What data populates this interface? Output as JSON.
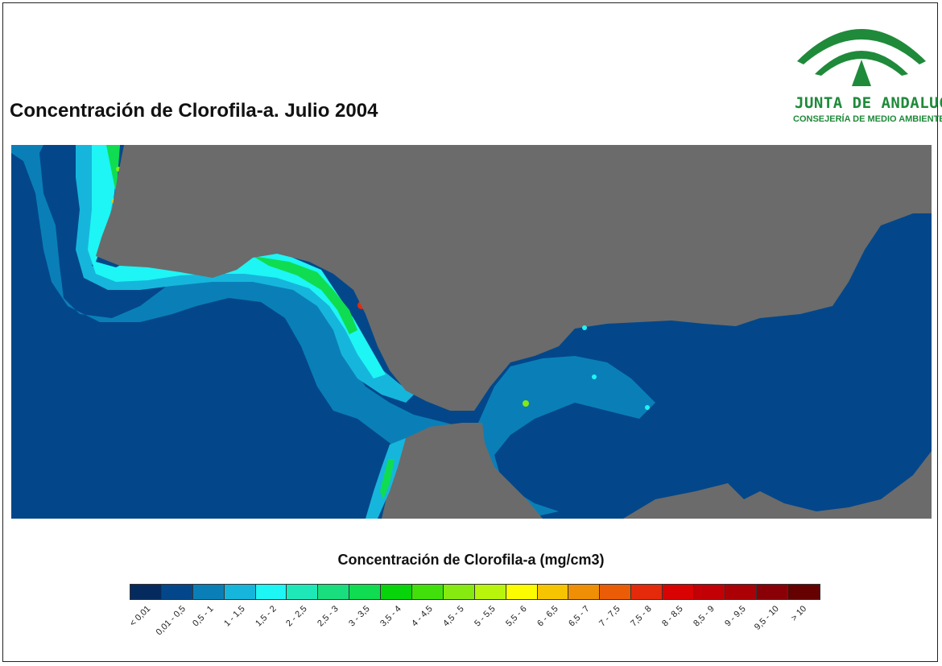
{
  "title": "Concentración de Clorofila-a. Julio 2004",
  "logo": {
    "line1": "JUNTA DE ANDALUCIA",
    "line2": "CONSEJERÍA DE MEDIO AMBIENTE",
    "color": "#1f8a3a"
  },
  "map": {
    "land_color": "#6b6b6b",
    "sea_color": "#03478a"
  },
  "legend": {
    "title": "Concentración de Clorofila-a (mg/cm3)",
    "classes": [
      {
        "label": "< 0,01",
        "color": "#052b5e"
      },
      {
        "label": "0,01 - 0,5",
        "color": "#03478a"
      },
      {
        "label": "0,5 - 1",
        "color": "#0a7fb7"
      },
      {
        "label": "1 - 1,5",
        "color": "#16b6dc"
      },
      {
        "label": "1,5 - 2",
        "color": "#1ef5f5"
      },
      {
        "label": "2 - 2,5",
        "color": "#1fe8b8"
      },
      {
        "label": "2,5 - 3",
        "color": "#19de7d"
      },
      {
        "label": "3 - 3,5",
        "color": "#10dc51"
      },
      {
        "label": "3,5 - 4",
        "color": "#08d40b"
      },
      {
        "label": "4 - 4,5",
        "color": "#42e00a"
      },
      {
        "label": "4,5 - 5",
        "color": "#86ea11"
      },
      {
        "label": "5 - 5,5",
        "color": "#b9f50c"
      },
      {
        "label": "5,5 - 6",
        "color": "#fbfb02"
      },
      {
        "label": "6 - 6,5",
        "color": "#f7c402"
      },
      {
        "label": "6,5 - 7",
        "color": "#ee8f06"
      },
      {
        "label": "7 - 7,5",
        "color": "#eb5c06"
      },
      {
        "label": "7,5 - 8",
        "color": "#e42a0a"
      },
      {
        "label": "8 - 8,5",
        "color": "#d90303"
      },
      {
        "label": "8,5 - 9",
        "color": "#c20005"
      },
      {
        "label": "9 - 9,5",
        "color": "#aa0006"
      },
      {
        "label": "9,5 - 10",
        "color": "#890006"
      },
      {
        "label": "> 10",
        "color": "#650100"
      }
    ]
  }
}
